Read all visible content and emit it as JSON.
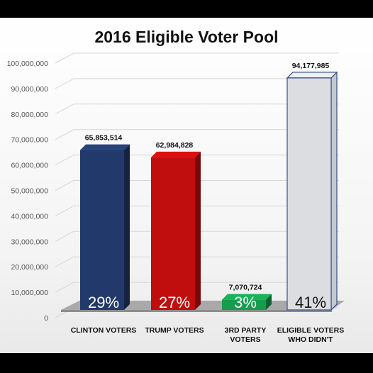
{
  "chart_data": {
    "type": "bar",
    "title": "2016 Eligible Voter Pool",
    "categories": [
      [
        "CLINTON VOTERS"
      ],
      [
        "TRUMP VOTERS"
      ],
      [
        "3RD PARTY",
        "VOTERS"
      ],
      [
        "ELIGIBLE VOTERS",
        "WHO DIDN'T"
      ]
    ],
    "values": [
      65853514,
      62984828,
      7070724,
      94177985
    ],
    "value_labels": [
      "65,853,514",
      "62,984,828",
      "7,070,724",
      "94,177,985"
    ],
    "percent_labels": [
      "29%",
      "27%",
      "3%",
      "41%"
    ],
    "colors": [
      "#22396b",
      "#c00d0d",
      "#169c4d",
      "#dcdde0"
    ],
    "ylim": [
      0,
      100000000
    ],
    "yticks": [
      "0",
      "10,000,000",
      "20,000,000",
      "30,000,000",
      "40,000,000",
      "50,000,000",
      "60,000,000",
      "70,000,000",
      "80,000,000",
      "90,000,000",
      "100,000,000"
    ],
    "xlabel": "",
    "ylabel": "",
    "legend": "none",
    "grid": true
  }
}
